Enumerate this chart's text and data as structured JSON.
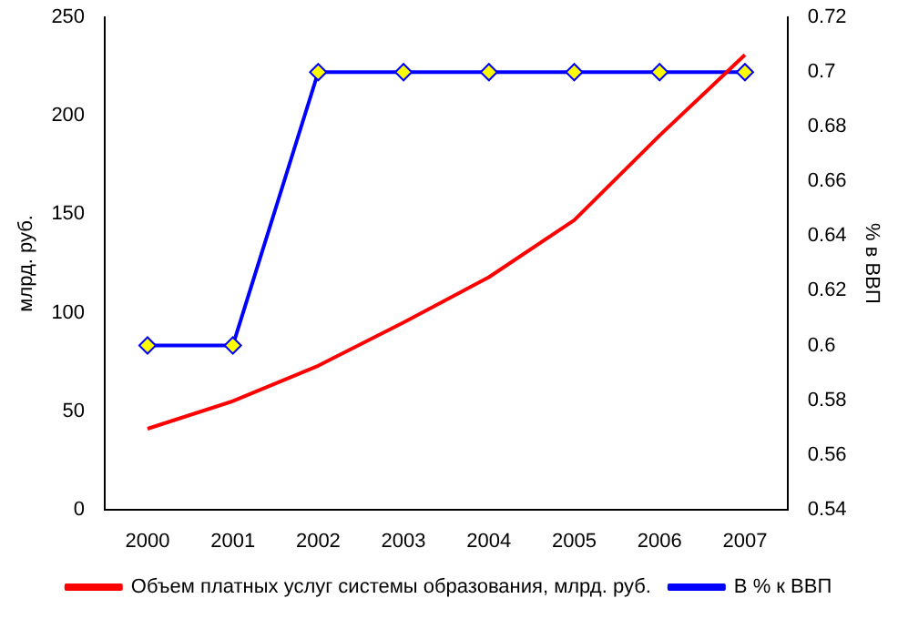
{
  "chart_data": {
    "type": "line",
    "categories": [
      "2000",
      "2001",
      "2002",
      "2003",
      "2004",
      "2005",
      "2006",
      "2007"
    ],
    "ylabel": "млрд. руб.",
    "y2label": "% в ВВП",
    "ylim": [
      0,
      250
    ],
    "yticks": [
      0,
      50,
      100,
      150,
      200,
      250
    ],
    "y2lim": [
      0.54,
      0.72
    ],
    "y2ticks": [
      0.54,
      0.56,
      0.58,
      0.6,
      0.62,
      0.64,
      0.66,
      0.68,
      0.7,
      0.72
    ],
    "grid": false,
    "legend": "bottom",
    "series": [
      {
        "name": "Объем платных услуг системы образования, млрд. руб.",
        "color": "#ff0000",
        "marker": "none",
        "values": [
          41,
          55,
          73,
          95,
          118,
          147,
          190,
          231
        ]
      },
      {
        "name": "В % к ВВП",
        "color": "#0000ff",
        "marker": "diamond",
        "axis": "y2",
        "values": [
          0.6,
          0.6,
          0.7,
          0.7,
          0.7,
          0.7,
          0.7,
          0.7
        ]
      }
    ]
  }
}
